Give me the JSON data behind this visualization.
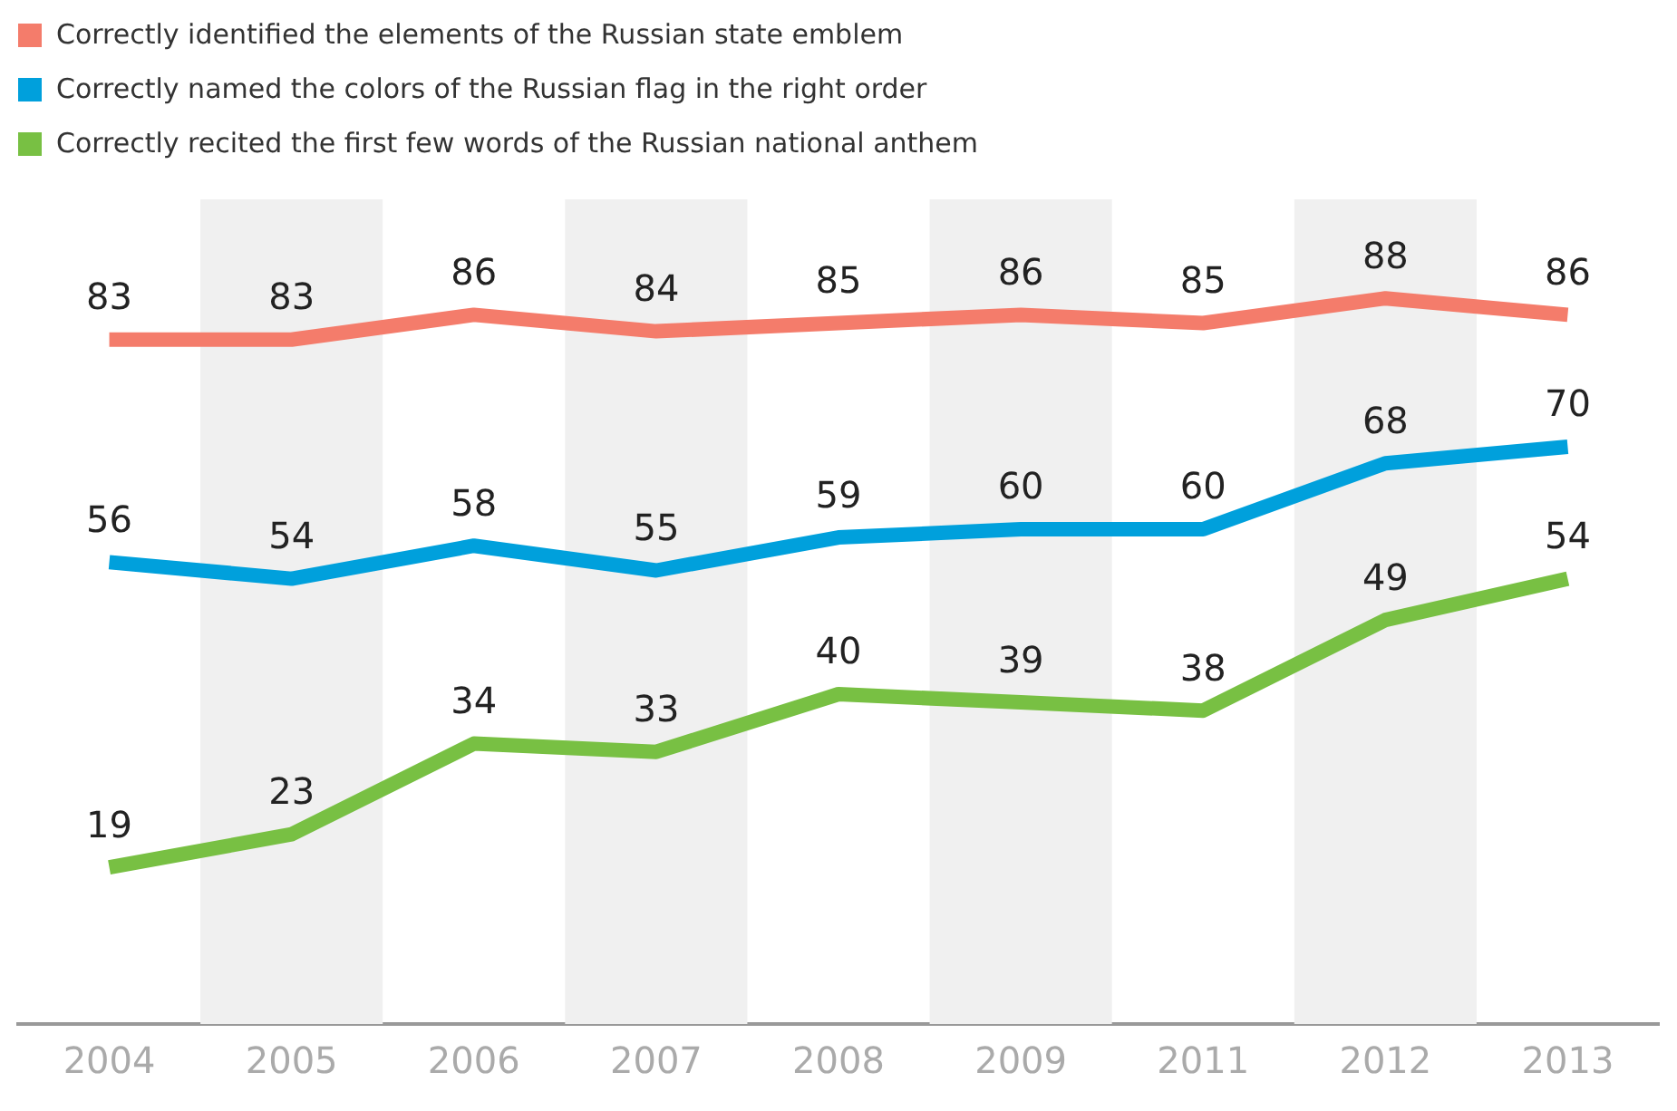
{
  "chart_data": {
    "type": "line",
    "categories": [
      "2004",
      "2005",
      "2006",
      "2007",
      "2008",
      "2009",
      "2011",
      "2012",
      "2013"
    ],
    "series": [
      {
        "name": "Correctly identified the elements of the Russian state emblem",
        "color": "#f47c6b",
        "values": [
          83,
          83,
          86,
          84,
          85,
          86,
          85,
          88,
          86
        ]
      },
      {
        "name": "Correctly named the colors of the Russian flag in the right order",
        "color": "#00a0dc",
        "values": [
          56,
          54,
          58,
          55,
          59,
          60,
          60,
          68,
          70
        ]
      },
      {
        "name": "Correctly recited the first few words of the Russian national anthem",
        "color": "#78c043",
        "values": [
          19,
          23,
          34,
          33,
          40,
          39,
          38,
          49,
          54
        ]
      }
    ],
    "bands": [
      {
        "axis": "x",
        "from": "2005",
        "to": "2005",
        "color": "#f0f0f0"
      },
      {
        "axis": "x",
        "from": "2007",
        "to": "2007",
        "color": "#f0f0f0"
      },
      {
        "axis": "x",
        "from": "2009",
        "to": "2009",
        "color": "#f0f0f0"
      },
      {
        "axis": "x",
        "from": "2012",
        "to": "2012",
        "color": "#f0f0f0"
      }
    ],
    "data_labels": true,
    "legend": "top left",
    "grid": false,
    "marker": "none",
    "line_style": "solid"
  }
}
